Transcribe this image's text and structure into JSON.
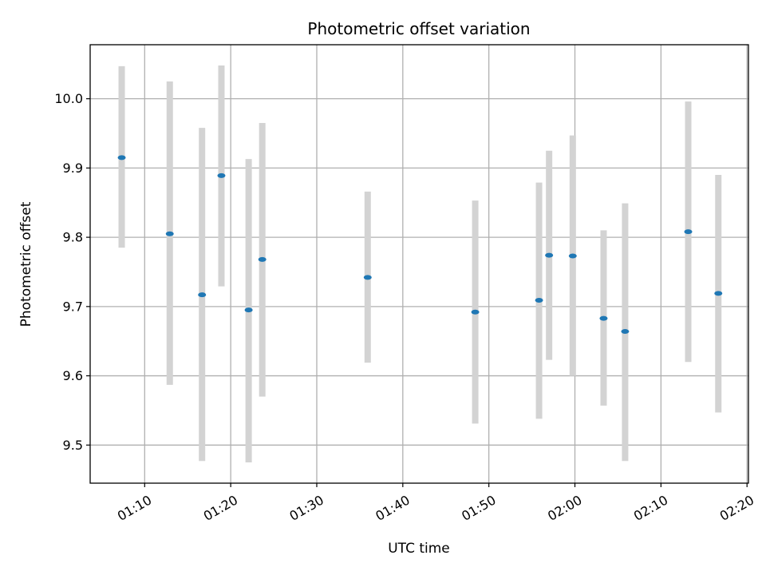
{
  "chart_data": {
    "type": "scatter",
    "title": "Photometric offset variation",
    "xlabel": "UTC time",
    "ylabel": "Photometric offset",
    "x_tick_labels": [
      "01:10",
      "01:20",
      "01:30",
      "01:40",
      "01:50",
      "02:00",
      "02:10",
      "02:20"
    ],
    "y_tick_labels": [
      "9.5",
      "9.6",
      "9.7",
      "9.8",
      "9.9",
      "10.0"
    ],
    "xlim": [
      "01:03:40",
      "02:20:10"
    ],
    "ylim": [
      9.445,
      10.078
    ],
    "grid": true,
    "marker_color": "#1f77b4",
    "errorbar_color": "#d3d3d3",
    "points": [
      {
        "time": "01:07:20",
        "y": 9.915,
        "ylow": 9.785,
        "yhigh": 10.047
      },
      {
        "time": "01:12:55",
        "y": 9.805,
        "ylow": 9.587,
        "yhigh": 10.025
      },
      {
        "time": "01:16:40",
        "y": 9.717,
        "ylow": 9.477,
        "yhigh": 9.958
      },
      {
        "time": "01:18:55",
        "y": 9.889,
        "ylow": 9.729,
        "yhigh": 10.048
      },
      {
        "time": "01:22:05",
        "y": 9.695,
        "ylow": 9.475,
        "yhigh": 9.913
      },
      {
        "time": "01:23:40",
        "y": 9.768,
        "ylow": 9.57,
        "yhigh": 9.965
      },
      {
        "time": "01:35:55",
        "y": 9.742,
        "ylow": 9.619,
        "yhigh": 9.866
      },
      {
        "time": "01:48:25",
        "y": 9.692,
        "ylow": 9.531,
        "yhigh": 9.853
      },
      {
        "time": "01:55:50",
        "y": 9.709,
        "ylow": 9.538,
        "yhigh": 9.879
      },
      {
        "time": "01:57:00",
        "y": 9.774,
        "ylow": 9.623,
        "yhigh": 9.925
      },
      {
        "time": "01:59:45",
        "y": 9.773,
        "ylow": 9.6,
        "yhigh": 9.947
      },
      {
        "time": "02:03:20",
        "y": 9.683,
        "ylow": 9.557,
        "yhigh": 9.81
      },
      {
        "time": "02:05:50",
        "y": 9.664,
        "ylow": 9.477,
        "yhigh": 9.849
      },
      {
        "time": "02:13:10",
        "y": 9.808,
        "ylow": 9.62,
        "yhigh": 9.996
      },
      {
        "time": "02:16:40",
        "y": 9.719,
        "ylow": 9.547,
        "yhigh": 9.89
      }
    ]
  }
}
